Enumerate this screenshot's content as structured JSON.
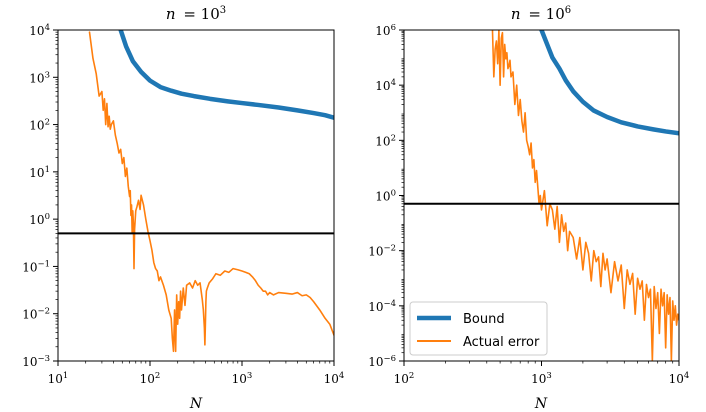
{
  "chart_data": [
    {
      "type": "line",
      "title": "n = 10^3",
      "title_parts": {
        "prefix": "n = 10",
        "exponent": "3"
      },
      "xlabel": "N",
      "ylabel": "",
      "xscale": "log",
      "yscale": "log",
      "xlim": [
        10,
        10000
      ],
      "ylim": [
        0.001,
        10000
      ],
      "x_ticks": [
        {
          "base": "10",
          "exp": "1"
        },
        {
          "base": "10",
          "exp": "2"
        },
        {
          "base": "10",
          "exp": "3"
        },
        {
          "base": "10",
          "exp": "4"
        }
      ],
      "y_ticks": [
        {
          "base": "10",
          "exp": "−3"
        },
        {
          "base": "10",
          "exp": "−2"
        },
        {
          "base": "10",
          "exp": "−1"
        },
        {
          "base": "10",
          "exp": "0"
        },
        {
          "base": "10",
          "exp": "1"
        },
        {
          "base": "10",
          "exp": "2"
        },
        {
          "base": "10",
          "exp": "3"
        },
        {
          "base": "10",
          "exp": "4"
        }
      ],
      "hline": 0.5,
      "series": [
        {
          "name": "Bound",
          "color": "#1f77b4",
          "x": [
            48,
            55,
            65,
            80,
            100,
            130,
            170,
            220,
            300,
            450,
            700,
            1000,
            1500,
            2500,
            4000,
            6000,
            8000,
            10000
          ],
          "values": [
            10000,
            4500,
            2200,
            1300,
            850,
            620,
            520,
            450,
            400,
            350,
            310,
            285,
            260,
            230,
            200,
            175,
            158,
            140
          ]
        },
        {
          "name": "Actual error",
          "color": "#ff7f0e",
          "x": [
            22,
            24,
            26,
            28,
            30,
            31,
            32,
            33,
            34,
            35,
            36,
            37,
            38,
            40,
            42,
            44,
            46,
            48,
            50,
            52,
            54,
            56,
            58,
            60,
            61,
            62,
            63,
            64,
            65,
            66,
            67,
            68,
            70,
            72,
            75,
            78,
            80,
            85,
            90,
            95,
            100,
            105,
            110,
            115,
            120,
            125,
            130,
            140,
            150,
            160,
            170,
            175,
            180,
            185,
            190,
            195,
            200,
            205,
            210,
            215,
            220,
            230,
            240,
            250,
            270,
            290,
            310,
            330,
            350,
            370,
            380,
            390,
            395,
            400,
            405,
            410,
            420,
            440,
            480,
            520,
            580,
            650,
            720,
            800,
            900,
            1000,
            1100,
            1200,
            1300,
            1400,
            1500,
            1600,
            1700,
            1800,
            1900,
            2000,
            2200,
            2500,
            3000,
            3500,
            4000,
            4500,
            5000,
            5500,
            6000,
            7000,
            8000,
            9000,
            10000
          ],
          "values": [
            9000,
            2500,
            1200,
            400,
            500,
            200,
            350,
            100,
            280,
            90,
            150,
            80,
            100,
            120,
            60,
            40,
            25,
            30,
            15,
            20,
            8,
            12,
            5,
            3,
            4,
            1.2,
            2,
            0.5,
            1.5,
            0.8,
            0.09,
            0.6,
            1.5,
            1.8,
            2.5,
            1.6,
            3.2,
            2.0,
            1.0,
            0.55,
            0.35,
            0.22,
            0.12,
            0.09,
            0.08,
            0.05,
            0.06,
            0.04,
            0.025,
            0.012,
            0.008,
            0.003,
            0.0016,
            0.012,
            0.0016,
            0.025,
            0.006,
            0.018,
            0.008,
            0.03,
            0.012,
            0.035,
            0.015,
            0.04,
            0.045,
            0.035,
            0.05,
            0.04,
            0.045,
            0.02,
            0.012,
            0.005,
            0.0022,
            0.006,
            0.018,
            0.03,
            0.035,
            0.045,
            0.055,
            0.07,
            0.065,
            0.08,
            0.075,
            0.09,
            0.085,
            0.08,
            0.075,
            0.07,
            0.06,
            0.05,
            0.04,
            0.035,
            0.03,
            0.03,
            0.025,
            0.028,
            0.025,
            0.028,
            0.027,
            0.026,
            0.028,
            0.024,
            0.025,
            0.022,
            0.018,
            0.012,
            0.008,
            0.006,
            0.0035
          ]
        }
      ]
    },
    {
      "type": "line",
      "title": "n = 10^6",
      "title_parts": {
        "prefix": "n = 10",
        "exponent": "6"
      },
      "xlabel": "N",
      "ylabel": "",
      "xscale": "log",
      "yscale": "log",
      "xlim": [
        100,
        10000
      ],
      "ylim": [
        1e-06,
        1000000
      ],
      "x_ticks": [
        {
          "base": "10",
          "exp": "2"
        },
        {
          "base": "10",
          "exp": "3"
        },
        {
          "base": "10",
          "exp": "4"
        }
      ],
      "y_ticks": [
        {
          "base": "10",
          "exp": "−6"
        },
        {
          "base": "10",
          "exp": "−4"
        },
        {
          "base": "10",
          "exp": "−2"
        },
        {
          "base": "10",
          "exp": "0"
        },
        {
          "base": "10",
          "exp": "2"
        },
        {
          "base": "10",
          "exp": "4"
        },
        {
          "base": "10",
          "exp": "6"
        }
      ],
      "hline": 0.5,
      "legend": {
        "position": "lower-left",
        "entries": [
          "Bound",
          "Actual error"
        ]
      },
      "series": [
        {
          "name": "Bound",
          "color": "#1f77b4",
          "x": [
            1000,
            1100,
            1200,
            1350,
            1500,
            1700,
            2000,
            2400,
            3000,
            3800,
            5000,
            6500,
            8000,
            10000
          ],
          "values": [
            1000000,
            300000,
            100000,
            40000,
            15000,
            6000,
            2500,
            1200,
            700,
            450,
            320,
            250,
            210,
            180
          ]
        },
        {
          "name": "Actual error",
          "color": "#ff7f0e",
          "x": [
            440,
            450,
            460,
            470,
            480,
            490,
            500,
            510,
            520,
            530,
            540,
            550,
            560,
            570,
            580,
            590,
            600,
            620,
            640,
            660,
            680,
            700,
            720,
            740,
            760,
            780,
            800,
            820,
            840,
            860,
            880,
            900,
            920,
            940,
            960,
            980,
            1000,
            1050,
            1100,
            1150,
            1200,
            1250,
            1300,
            1350,
            1400,
            1450,
            1500,
            1550,
            1600,
            1700,
            1800,
            1900,
            2000,
            2100,
            2200,
            2300,
            2400,
            2500,
            2600,
            2700,
            2800,
            2900,
            3000,
            3200,
            3400,
            3600,
            3800,
            4000,
            4200,
            4400,
            4600,
            4800,
            5000,
            5200,
            5400,
            5600,
            5800,
            6000,
            6200,
            6400,
            6600,
            6800,
            7000,
            7200,
            7400,
            7600,
            7800,
            8000,
            8200,
            8400,
            8600,
            8800,
            9000,
            9200,
            9400,
            9600,
            9800,
            10000
          ],
          "values": [
            1000000,
            20000,
            200000,
            400000,
            60000,
            1000000,
            10000,
            500000,
            800000,
            20000,
            300000,
            90000,
            150000,
            40000,
            50000,
            80000,
            20000,
            30000,
            2000,
            10000,
            800,
            3000,
            500,
            200,
            1000,
            100,
            60,
            30,
            80,
            10,
            20,
            3,
            8,
            2,
            0.5,
            1,
            0.3,
            1.5,
            0.08,
            0.5,
            0.3,
            0.06,
            0.4,
            0.02,
            0.2,
            0.05,
            0.1,
            0.01,
            0.05,
            0.03,
            0.005,
            0.03,
            0.002,
            0.02,
            0.008,
            0.0008,
            0.01,
            0.004,
            0.006,
            0.0005,
            0.008,
            0.002,
            0.005,
            0.0003,
            0.004,
            0.0008,
            0.003,
            8e-05,
            0.002,
            0.0006,
            0.0015,
            5e-05,
            0.001,
            0.0004,
            0.0008,
            3e-05,
            0.0006,
            0.0002,
            0.0004,
            1e-06,
            0.0005,
            8e-05,
            0.0003,
            1e-05,
            0.0004,
            0.0001,
            0.0003,
            3e-06,
            0.00025,
            5e-05,
            0.0002,
            1e-06,
            0.00015,
            3e-05,
            0.0001,
            2e-05,
            5e-05,
            3e-05
          ]
        }
      ]
    }
  ],
  "legend_labels": {
    "bound": "Bound",
    "actual": "Actual error"
  },
  "colors": {
    "bound": "#1f77b4",
    "actual": "#ff7f0e",
    "hline": "#000000"
  }
}
